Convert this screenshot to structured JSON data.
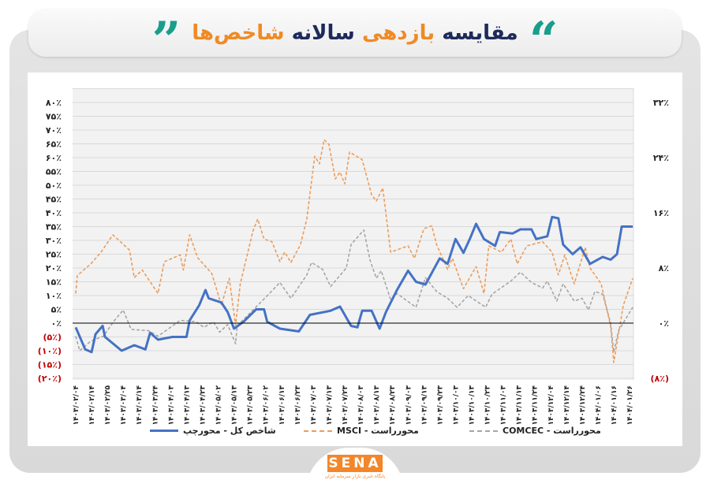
{
  "header": {
    "title_parts": [
      {
        "text": "مقایسه",
        "color": "#1d2a5a"
      },
      {
        "text": "بازدهی",
        "color": "#f08a24"
      },
      {
        "text": "سالانه",
        "color": "#1d2a5a"
      },
      {
        "text": "شاخص‌ها",
        "color": "#f08a24"
      }
    ],
    "quote_open": "”",
    "quote_close": "“",
    "quote_color": "#1a9e8c"
  },
  "logo": {
    "text": "SENA",
    "subtitle": "پایگاه خبری بازار سرمایه ایران"
  },
  "chart_data": {
    "type": "line",
    "title": "مقایسه بازدهی سالانه شاخص‌ها",
    "grid": true,
    "legend_position": "bottom",
    "x_categories": [
      "۱۴۰۳/۰۲/۰۴",
      "۱۴۰۳/۰۲/۱۴",
      "۱۴۰۳/۰۲/۲۵",
      "۱۴۰۳/۰۳/۰۴",
      "۱۴۰۳/۰۳/۱۴",
      "۱۴۰۳/۰۳/۲۴",
      "۱۴۰۳/۰۴/۰۳",
      "۱۴۰۳/۰۴/۱۳",
      "۱۴۰۳/۰۴/۲۳",
      "۱۴۰۳/۰۵/۰۲",
      "۱۴۰۳/۰۵/۱۳",
      "۱۴۰۳/۰۵/۲۳",
      "۱۴۰۳/۰۶/۰۲",
      "۱۴۰۳/۰۶/۱۳",
      "۱۴۰۳/۰۶/۲۳",
      "۱۴۰۳/۰۷/۰۳",
      "۱۴۰۳/۰۷/۱۳",
      "۱۴۰۳/۰۷/۲۳",
      "۱۴۰۳/۰۸/۰۳",
      "۱۴۰۳/۰۸/۱۳",
      "۱۴۰۳/۰۸/۲۳",
      "۱۴۰۳/۰۹/۰۳",
      "۱۴۰۳/۰۹/۱۳",
      "۱۴۰۳/۰۹/۲۳",
      "۱۴۰۳/۱۰/۰۳",
      "۱۴۰۳/۱۰/۱۳",
      "۱۴۰۳/۱۰/۲۳",
      "۱۴۰۳/۱۱/۰۳",
      "۱۴۰۳/۱۱/۱۳",
      "۱۴۰۳/۱۱/۲۴",
      "۱۴۰۳/۱۲/۰۴",
      "۱۴۰۳/۱۲/۱۴",
      "۱۴۰۳/۱۲/۲۴",
      "۱۴۰۴/۰۱/۰۶",
      "۱۴۰۴/۰۱/۱۶",
      "۱۴۰۴/۰۱/۲۶"
    ],
    "left_axis": {
      "ylim": [
        -20,
        80
      ],
      "ticks": [
        80,
        75,
        70,
        65,
        60,
        55,
        50,
        45,
        40,
        35,
        30,
        25,
        20,
        15,
        10,
        5,
        0,
        -5,
        -10,
        -15,
        -20
      ],
      "tick_labels": [
        "۸۰٪",
        "۷۵٪",
        "۷۰٪",
        "۶۵٪",
        "۶۰٪",
        "۵۵٪",
        "۵۰٪",
        "۴۵٪",
        "۴۰٪",
        "۳۵٪",
        "۳۰٪",
        "۲۵٪",
        "۲۰٪",
        "۱۵٪",
        "۱۰٪",
        "۵٪",
        "۰٪",
        "(۵٪)",
        "(۱۰٪)",
        "(۱۵٪)",
        "(۲۰٪)"
      ]
    },
    "right_axis": {
      "ylim": [
        -8,
        32
      ],
      "ticks": [
        32,
        24,
        16,
        8,
        0,
        -8
      ],
      "tick_labels": [
        "۳۲٪",
        "۲۴٪",
        "۱۶٪",
        "۸٪",
        "۰٪",
        "(۸٪)"
      ]
    },
    "negative_label_color": "#c00000",
    "series": [
      {
        "name": "شاخص کل - محورچپ",
        "axis": "left",
        "color": "#4472c4",
        "style": "solid",
        "points": [
          [
            0,
            -1.5
          ],
          [
            0.6,
            -9.5
          ],
          [
            1.0,
            -10.5
          ],
          [
            1.25,
            -4
          ],
          [
            1.7,
            -1
          ],
          [
            1.85,
            -5
          ],
          [
            2.9,
            -10
          ],
          [
            3.7,
            -8
          ],
          [
            4.4,
            -9.5
          ],
          [
            4.7,
            -3.5
          ],
          [
            5.2,
            -6
          ],
          [
            6.1,
            -5
          ],
          [
            7.0,
            -5
          ],
          [
            7.2,
            1
          ],
          [
            7.8,
            6.5
          ],
          [
            8.2,
            12
          ],
          [
            8.4,
            9
          ],
          [
            9.2,
            7.5
          ],
          [
            9.6,
            4
          ],
          [
            10.0,
            -2
          ],
          [
            10.6,
            0.5
          ],
          [
            11.4,
            5
          ],
          [
            11.9,
            5
          ],
          [
            12.1,
            0.5
          ],
          [
            12.9,
            -2
          ],
          [
            14.1,
            -3
          ],
          [
            14.8,
            3
          ],
          [
            16.1,
            4.5
          ],
          [
            16.7,
            6
          ],
          [
            17.4,
            -1
          ],
          [
            17.8,
            -1.5
          ],
          [
            18.1,
            4.5
          ],
          [
            18.7,
            4.5
          ],
          [
            19.2,
            -2
          ],
          [
            19.6,
            4
          ],
          [
            20.3,
            12
          ],
          [
            21.0,
            19
          ],
          [
            21.5,
            15
          ],
          [
            22.1,
            14
          ],
          [
            23.0,
            23.5
          ],
          [
            23.5,
            21.5
          ],
          [
            24.0,
            30.5
          ],
          [
            24.5,
            25.5
          ],
          [
            24.9,
            30.5
          ],
          [
            25.3,
            36
          ],
          [
            25.8,
            30.5
          ],
          [
            26.5,
            28
          ],
          [
            26.8,
            33
          ],
          [
            27.6,
            32.5
          ],
          [
            28.1,
            34
          ],
          [
            28.8,
            34
          ],
          [
            29.1,
            30.5
          ],
          [
            29.8,
            31.5
          ],
          [
            30.1,
            38.5
          ],
          [
            30.5,
            38
          ],
          [
            30.8,
            28.5
          ],
          [
            31.4,
            25
          ],
          [
            31.9,
            27.5
          ],
          [
            32.5,
            21.5
          ],
          [
            33.3,
            24
          ],
          [
            33.8,
            23
          ],
          [
            34.2,
            25
          ],
          [
            34.5,
            35
          ],
          [
            35.2,
            35
          ]
        ]
      },
      {
        "name": "محورراست - MSCI",
        "axis": "right",
        "color": "#ed9c5a",
        "style": "dashed",
        "points": [
          [
            0,
            4.3
          ],
          [
            0.1,
            6.9
          ],
          [
            0.95,
            8.6
          ],
          [
            1.6,
            10.3
          ],
          [
            2.35,
            12.8
          ],
          [
            3.4,
            10.6
          ],
          [
            3.7,
            6.6
          ],
          [
            4.2,
            7.7
          ],
          [
            5.2,
            4.3
          ],
          [
            5.6,
            8.9
          ],
          [
            6.6,
            9.9
          ],
          [
            6.8,
            7.7
          ],
          [
            7.2,
            12.8
          ],
          [
            7.7,
            9.5
          ],
          [
            8.6,
            7.2
          ],
          [
            9.2,
            2.6
          ],
          [
            9.7,
            6.5
          ],
          [
            10.1,
            -0.3
          ],
          [
            10.4,
            5.7
          ],
          [
            11.2,
            13.4
          ],
          [
            11.5,
            15.1
          ],
          [
            11.9,
            12.2
          ],
          [
            12.4,
            11.8
          ],
          [
            12.9,
            8.9
          ],
          [
            13.2,
            10.3
          ],
          [
            13.6,
            8.8
          ],
          [
            14.2,
            11.4
          ],
          [
            14.6,
            15.1
          ],
          [
            15.1,
            24.2
          ],
          [
            15.4,
            23.1
          ],
          [
            15.7,
            26.6
          ],
          [
            16.0,
            25.9
          ],
          [
            16.4,
            20.9
          ],
          [
            16.7,
            21.9
          ],
          [
            17.0,
            20.2
          ],
          [
            17.3,
            24.8
          ],
          [
            18.1,
            23.7
          ],
          [
            18.7,
            18.6
          ],
          [
            19.0,
            17.7
          ],
          [
            19.4,
            19.6
          ],
          [
            19.9,
            10.3
          ],
          [
            21.0,
            11.2
          ],
          [
            21.4,
            9.4
          ],
          [
            22.0,
            13.7
          ],
          [
            22.5,
            14.1
          ],
          [
            22.8,
            11.4
          ],
          [
            23.5,
            7.8
          ],
          [
            23.8,
            9.4
          ],
          [
            24.5,
            5
          ],
          [
            25.3,
            8.2
          ],
          [
            25.8,
            4.3
          ],
          [
            26.1,
            11.2
          ],
          [
            26.9,
            10.3
          ],
          [
            27.5,
            12.2
          ],
          [
            27.9,
            8.6
          ],
          [
            28.5,
            11.2
          ],
          [
            29.5,
            11.8
          ],
          [
            30.1,
            10.3
          ],
          [
            30.5,
            7
          ],
          [
            30.9,
            9.9
          ],
          [
            31.5,
            5.7
          ],
          [
            32.2,
            11
          ],
          [
            32.5,
            8
          ],
          [
            33.2,
            5.7
          ],
          [
            33.8,
            -0.4
          ],
          [
            34.0,
            -5.7
          ],
          [
            34.6,
            2.6
          ],
          [
            35.2,
            6.5
          ]
        ]
      },
      {
        "name": "محورراست - COMCEC",
        "axis": "right",
        "color": "#a6a6a6",
        "style": "dashed",
        "points": [
          [
            0,
            -1.9
          ],
          [
            0.25,
            -4
          ],
          [
            0.95,
            -2.6
          ],
          [
            1.75,
            -1.9
          ],
          [
            2.45,
            0.4
          ],
          [
            3.0,
            1.9
          ],
          [
            3.5,
            -0.9
          ],
          [
            4.6,
            -1.1
          ],
          [
            5.2,
            -1.9
          ],
          [
            6.6,
            0.4
          ],
          [
            7.6,
            0.2
          ],
          [
            8.1,
            -0.6
          ],
          [
            8.7,
            0.2
          ],
          [
            9.1,
            -1.3
          ],
          [
            9.6,
            -0.2
          ],
          [
            10.1,
            -3
          ],
          [
            10.2,
            -0.4
          ],
          [
            11.2,
            1.9
          ],
          [
            12.2,
            4.2
          ],
          [
            12.9,
            5.9
          ],
          [
            13.6,
            3.6
          ],
          [
            14.6,
            7
          ],
          [
            14.9,
            8.8
          ],
          [
            15.6,
            7.8
          ],
          [
            16.1,
            5.3
          ],
          [
            17.1,
            8
          ],
          [
            17.4,
            11.4
          ],
          [
            18.2,
            13.5
          ],
          [
            18.6,
            9.1
          ],
          [
            19.0,
            6.5
          ],
          [
            19.3,
            7.6
          ],
          [
            19.9,
            3.4
          ],
          [
            20.3,
            4.3
          ],
          [
            21.5,
            2.3
          ],
          [
            22.1,
            6.6
          ],
          [
            22.8,
            4.6
          ],
          [
            23.5,
            3.6
          ],
          [
            24.1,
            2.3
          ],
          [
            24.8,
            4
          ],
          [
            25.9,
            2.3
          ],
          [
            26.3,
            4.2
          ],
          [
            27.5,
            6.1
          ],
          [
            28.1,
            7.4
          ],
          [
            28.8,
            5.9
          ],
          [
            29.5,
            5.1
          ],
          [
            29.8,
            6.1
          ],
          [
            30.4,
            3.2
          ],
          [
            30.8,
            5.7
          ],
          [
            31.5,
            3.2
          ],
          [
            32.0,
            3.6
          ],
          [
            32.4,
            1.9
          ],
          [
            32.8,
            4.6
          ],
          [
            33.3,
            4.2
          ],
          [
            33.8,
            0
          ],
          [
            34.0,
            -4.2
          ],
          [
            34.3,
            -1.1
          ],
          [
            35.2,
            2.3
          ]
        ]
      }
    ]
  },
  "legend": {
    "items": [
      {
        "label": "شاخص کل - محورچپ"
      },
      {
        "label": "محورراست - MSCI"
      },
      {
        "label": "محورراست - COMCEC"
      }
    ]
  }
}
